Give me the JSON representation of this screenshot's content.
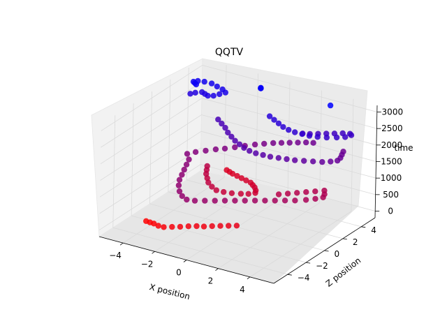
{
  "chart_data": {
    "type": "scatter",
    "projection": "3d",
    "title": "QQTV",
    "xlabel": "X position",
    "ylabel": "Z position",
    "zlabel": "time",
    "xlim": [
      -5.5,
      5.5
    ],
    "ylim": [
      -5.5,
      5.5
    ],
    "zlim": [
      -200,
      3200
    ],
    "xticks": [
      -4,
      -2,
      0,
      2,
      4
    ],
    "yticks": [
      -4,
      -2,
      0,
      2,
      4
    ],
    "zticks": [
      0,
      500,
      1000,
      1500,
      2000,
      2500,
      3000
    ],
    "xtick_labels": [
      "−4",
      "−2",
      "0",
      "2",
      "4"
    ],
    "ytick_labels": [
      "−4",
      "−2",
      "0",
      "2",
      "4"
    ],
    "ztick_labels": [
      "0",
      "500",
      "1000",
      "1500",
      "2000",
      "2500",
      "3000"
    ],
    "grid": true,
    "legend": "none",
    "color_encoding": "time",
    "color_start": "#ff0000",
    "color_end": "#0000ff",
    "points": [
      [
        -4.0,
        -3.0,
        0,
        10
      ],
      [
        -3.7,
        -3.1,
        0,
        30
      ],
      [
        -3.4,
        -3.2,
        0,
        50
      ],
      [
        -3.0,
        -3.4,
        0,
        70
      ],
      [
        -2.6,
        -3.5,
        0,
        100
      ],
      [
        -2.2,
        -3.3,
        0,
        120
      ],
      [
        -1.8,
        -3.1,
        0,
        140
      ],
      [
        -1.4,
        -2.9,
        0,
        170
      ],
      [
        -1.0,
        -2.7,
        0,
        190
      ],
      [
        -0.6,
        -2.6,
        0,
        210
      ],
      [
        -0.2,
        -2.4,
        0,
        240
      ],
      [
        0.2,
        -2.2,
        0,
        260
      ],
      [
        0.6,
        -2.0,
        0,
        280
      ],
      [
        1.0,
        -1.8,
        0,
        300
      ],
      [
        -3.0,
        4.0,
        0,
        420
      ],
      [
        -2.7,
        3.8,
        0,
        440
      ],
      [
        -2.4,
        3.6,
        0,
        460
      ],
      [
        -2.0,
        3.4,
        0,
        480
      ],
      [
        -1.6,
        3.2,
        0,
        500
      ],
      [
        -1.2,
        3.0,
        0,
        520
      ],
      [
        -0.8,
        2.8,
        0,
        540
      ],
      [
        -0.5,
        2.5,
        0,
        560
      ],
      [
        -0.2,
        2.2,
        0,
        580
      ],
      [
        0.1,
        1.8,
        0,
        600
      ],
      [
        0.3,
        1.4,
        0,
        620
      ],
      [
        0.1,
        1.0,
        0,
        640
      ],
      [
        -0.2,
        0.7,
        0,
        660
      ],
      [
        -0.6,
        0.4,
        0,
        680
      ],
      [
        -1.0,
        0.2,
        0,
        700
      ],
      [
        -1.4,
        0.1,
        0,
        720
      ],
      [
        -1.8,
        0.3,
        0,
        740
      ],
      [
        -2.2,
        0.6,
        0,
        760
      ],
      [
        -2.5,
        1.0,
        0,
        780
      ],
      [
        -2.8,
        1.4,
        0,
        800
      ],
      [
        -3.0,
        1.8,
        0,
        820
      ],
      [
        -3.2,
        2.2,
        0,
        840
      ],
      [
        2.0,
        1.0,
        0,
        870
      ],
      [
        2.4,
        1.3,
        0,
        890
      ],
      [
        2.8,
        1.6,
        0,
        910
      ],
      [
        3.2,
        1.9,
        0,
        930
      ],
      [
        3.6,
        2.2,
        0,
        950
      ],
      [
        4.0,
        2.5,
        0,
        970
      ],
      [
        4.3,
        2.0,
        0,
        990
      ],
      [
        4.5,
        1.5,
        0,
        1010
      ],
      [
        4.3,
        1.0,
        0,
        1030
      ],
      [
        4.0,
        0.5,
        0,
        1050
      ],
      [
        3.6,
        0.0,
        0,
        1070
      ],
      [
        3.2,
        -0.4,
        0,
        1090
      ],
      [
        2.8,
        -0.8,
        0,
        1110
      ],
      [
        2.4,
        -1.2,
        0,
        1130
      ],
      [
        2.0,
        -1.6,
        0,
        1150
      ],
      [
        1.6,
        -2.0,
        0,
        1170
      ],
      [
        1.2,
        -2.4,
        0,
        1190
      ],
      [
        0.8,
        -2.8,
        0,
        1210
      ],
      [
        0.4,
        -3.2,
        0,
        1230
      ],
      [
        0.0,
        -3.6,
        0,
        1250
      ],
      [
        -0.4,
        -4.0,
        0,
        1270
      ],
      [
        -0.8,
        -4.2,
        0,
        1290
      ],
      [
        -1.2,
        -4.0,
        0,
        1310
      ],
      [
        -1.6,
        -3.6,
        0,
        1330
      ],
      [
        -2.0,
        -3.0,
        0,
        1350
      ],
      [
        -2.3,
        -2.4,
        0,
        1370
      ],
      [
        -2.5,
        -1.8,
        0,
        1390
      ],
      [
        -2.7,
        -1.2,
        0,
        1410
      ],
      [
        -2.9,
        -0.6,
        0,
        1430
      ],
      [
        -3.1,
        0.0,
        0,
        1450
      ],
      [
        -3.5,
        0.5,
        0,
        1480
      ],
      [
        -3.2,
        0.9,
        0,
        1500
      ],
      [
        -2.8,
        1.3,
        0,
        1520
      ],
      [
        -2.4,
        1.7,
        0,
        1540
      ],
      [
        -2.0,
        2.0,
        0,
        1560
      ],
      [
        -1.6,
        2.4,
        0,
        1580
      ],
      [
        -1.2,
        2.8,
        0,
        1600
      ],
      [
        -0.8,
        3.2,
        0,
        1620
      ],
      [
        -0.4,
        3.5,
        0,
        1640
      ],
      [
        0.0,
        3.8,
        0,
        1660
      ],
      [
        0.4,
        4.0,
        0,
        1680
      ],
      [
        0.8,
        4.2,
        0,
        1700
      ],
      [
        1.2,
        4.4,
        0,
        1720
      ],
      [
        1.6,
        4.6,
        0,
        1740
      ],
      [
        2.0,
        4.7,
        0,
        1760
      ],
      [
        4.0,
        4.5,
        0,
        1790
      ],
      [
        4.2,
        4.0,
        0,
        1810
      ],
      [
        4.4,
        3.5,
        0,
        1830
      ],
      [
        4.5,
        3.0,
        0,
        1850
      ],
      [
        4.3,
        2.6,
        0,
        1870
      ],
      [
        4.0,
        2.2,
        0,
        1890
      ],
      [
        3.6,
        1.9,
        0,
        1910
      ],
      [
        3.2,
        1.6,
        0,
        1930
      ],
      [
        2.8,
        1.3,
        0,
        1950
      ],
      [
        2.4,
        1.1,
        0,
        1970
      ],
      [
        2.0,
        0.9,
        0,
        1990
      ],
      [
        1.6,
        0.7,
        0,
        2010
      ],
      [
        1.2,
        0.6,
        0,
        2030
      ],
      [
        0.8,
        0.5,
        0,
        2050
      ],
      [
        0.4,
        0.5,
        0,
        2070
      ],
      [
        0.0,
        0.6,
        0,
        2090
      ],
      [
        -0.4,
        0.8,
        0,
        2110
      ],
      [
        -0.8,
        1.0,
        0,
        2130
      ],
      [
        -1.2,
        1.3,
        0,
        2150
      ],
      [
        -1.6,
        1.6,
        0,
        2170
      ],
      [
        -2.0,
        2.0,
        0,
        2190
      ],
      [
        -2.4,
        2.3,
        0,
        2210
      ],
      [
        -2.8,
        2.6,
        0,
        2230
      ],
      [
        2.0,
        3.5,
        0,
        2260
      ],
      [
        2.4,
        3.6,
        0,
        2280
      ],
      [
        2.8,
        3.8,
        0,
        2300
      ],
      [
        3.2,
        4.0,
        0,
        2320
      ],
      [
        3.6,
        4.2,
        0,
        2340
      ],
      [
        4.0,
        4.4,
        0,
        2360
      ],
      [
        4.4,
        4.5,
        0,
        2380
      ],
      [
        4.6,
        4.3,
        0,
        2400
      ],
      [
        4.5,
        3.8,
        0,
        2420
      ],
      [
        4.2,
        3.4,
        0,
        2440
      ],
      [
        3.8,
        3.0,
        0,
        2460
      ],
      [
        3.4,
        2.7,
        0,
        2480
      ],
      [
        3.0,
        2.5,
        0,
        2500
      ],
      [
        2.6,
        2.4,
        0,
        2520
      ],
      [
        2.2,
        2.3,
        0,
        2540
      ],
      [
        1.8,
        2.3,
        0,
        2560
      ],
      [
        1.4,
        2.4,
        0,
        2580
      ],
      [
        1.0,
        2.6,
        0,
        2600
      ],
      [
        0.6,
        2.8,
        0,
        2620
      ],
      [
        0.2,
        3.0,
        0,
        2640
      ],
      [
        -4.8,
        3.0,
        0,
        2680
      ],
      [
        -4.6,
        3.2,
        0,
        2700
      ],
      [
        -4.3,
        3.4,
        0,
        2720
      ],
      [
        -4.0,
        3.2,
        0,
        2740
      ],
      [
        -3.7,
        3.0,
        0,
        2760
      ],
      [
        -3.4,
        3.1,
        0,
        2780
      ],
      [
        -3.2,
        3.4,
        0,
        2800
      ],
      [
        -3.0,
        3.7,
        0,
        2820
      ],
      [
        -3.3,
        3.9,
        0,
        2840
      ],
      [
        -3.7,
        4.0,
        0,
        2860
      ],
      [
        -4.1,
        4.1,
        0,
        2880
      ],
      [
        -4.5,
        4.0,
        0,
        2900
      ],
      [
        -4.8,
        3.8,
        0,
        2920
      ],
      [
        -4.9,
        3.5,
        0,
        2940
      ],
      [
        -4.7,
        3.3,
        0,
        2960
      ],
      [
        -4.5,
        3.1,
        0,
        2980
      ],
      [
        -1.3,
        4.6,
        0,
        3000
      ],
      [
        -1.3,
        4.6,
        0,
        3010
      ],
      [
        -1.3,
        4.6,
        0,
        3020
      ],
      [
        3.2,
        4.4,
        0,
        3100
      ]
    ]
  }
}
